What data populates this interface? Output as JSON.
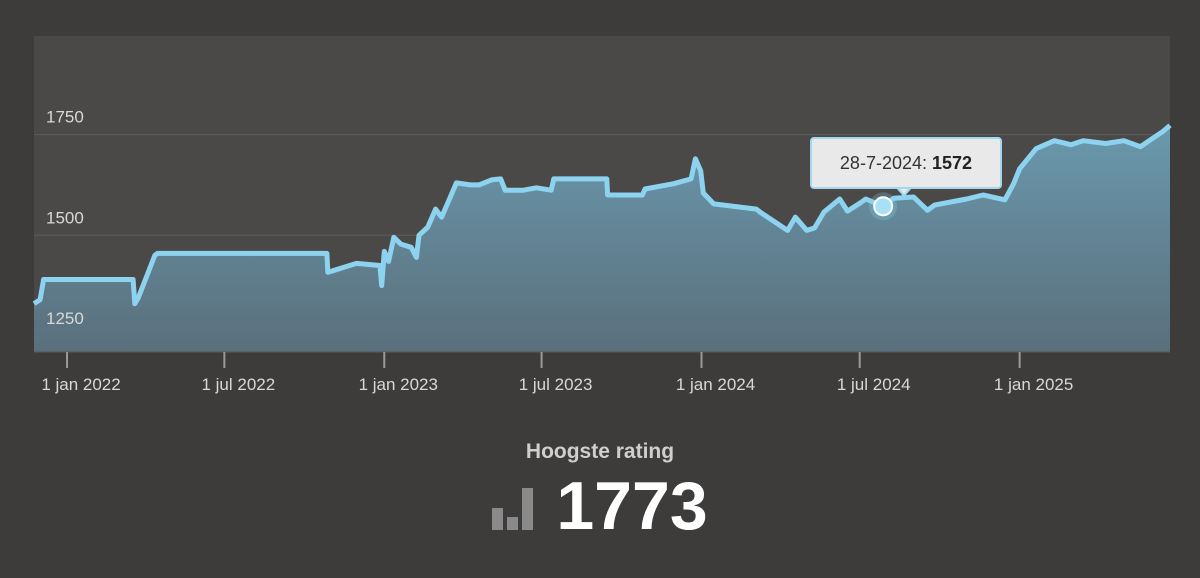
{
  "chart_data": {
    "type": "area",
    "y_ticks": [
      1250,
      1500,
      1750
    ],
    "ylim": [
      1210,
      1995
    ],
    "x_ticks": [
      "1 jan 2022",
      "1 jul 2022",
      "1 jan 2023",
      "1 jul 2023",
      "1 jan 2024",
      "1 jul 2024",
      "1 jan 2025"
    ],
    "x_tick_dates": [
      "2022-01-01",
      "2022-07-01",
      "2023-01-01",
      "2023-07-01",
      "2024-01-01",
      "2024-07-01",
      "2025-01-01"
    ],
    "xlim": [
      "2021-11-24",
      "2025-06-23"
    ],
    "grid": true,
    "line_color": "#8dd3f0",
    "series": [
      {
        "points": [
          [
            "2021-11-24",
            1330
          ],
          [
            "2021-12-01",
            1340
          ],
          [
            "2021-12-05",
            1390
          ],
          [
            "2022-02-15",
            1390
          ],
          [
            "2022-03-18",
            1390
          ],
          [
            "2022-03-20",
            1330
          ],
          [
            "2022-03-24",
            1345
          ],
          [
            "2022-04-03",
            1400
          ],
          [
            "2022-04-12",
            1450
          ],
          [
            "2022-04-15",
            1455
          ],
          [
            "2022-10-27",
            1455
          ],
          [
            "2022-10-28",
            1408
          ],
          [
            "2022-11-30",
            1430
          ],
          [
            "2022-12-27",
            1425
          ],
          [
            "2022-12-29",
            1375
          ],
          [
            "2023-01-01",
            1460
          ],
          [
            "2023-01-06",
            1435
          ],
          [
            "2023-01-12",
            1495
          ],
          [
            "2023-01-20",
            1478
          ],
          [
            "2023-02-01",
            1470
          ],
          [
            "2023-02-07",
            1445
          ],
          [
            "2023-02-10",
            1500
          ],
          [
            "2023-02-20",
            1520
          ],
          [
            "2023-03-01",
            1565
          ],
          [
            "2023-03-08",
            1545
          ],
          [
            "2023-03-15",
            1580
          ],
          [
            "2023-03-25",
            1630
          ],
          [
            "2023-04-10",
            1625
          ],
          [
            "2023-04-20",
            1625
          ],
          [
            "2023-05-05",
            1638
          ],
          [
            "2023-05-15",
            1640
          ],
          [
            "2023-05-20",
            1612
          ],
          [
            "2023-06-10",
            1612
          ],
          [
            "2023-06-25",
            1618
          ],
          [
            "2023-07-12",
            1612
          ],
          [
            "2023-07-15",
            1640
          ],
          [
            "2023-09-14",
            1640
          ],
          [
            "2023-09-15",
            1600
          ],
          [
            "2023-10-25",
            1600
          ],
          [
            "2023-10-28",
            1615
          ],
          [
            "2023-11-30",
            1628
          ],
          [
            "2023-12-20",
            1640
          ],
          [
            "2023-12-25",
            1690
          ],
          [
            "2023-12-31",
            1660
          ],
          [
            "2024-01-03",
            1605
          ],
          [
            "2024-01-15",
            1578
          ],
          [
            "2024-03-04",
            1565
          ],
          [
            "2024-03-10",
            1555
          ],
          [
            "2024-03-22",
            1538
          ],
          [
            "2024-04-09",
            1512
          ],
          [
            "2024-04-18",
            1545
          ],
          [
            "2024-05-01",
            1512
          ],
          [
            "2024-05-10",
            1518
          ],
          [
            "2024-05-21",
            1558
          ],
          [
            "2024-06-08",
            1590
          ],
          [
            "2024-06-17",
            1560
          ],
          [
            "2024-06-30",
            1578
          ],
          [
            "2024-07-08",
            1590
          ],
          [
            "2024-07-28",
            1572
          ],
          [
            "2024-08-09",
            1592
          ],
          [
            "2024-09-01",
            1595
          ],
          [
            "2024-09-17",
            1562
          ],
          [
            "2024-09-25",
            1575
          ],
          [
            "2024-11-01",
            1590
          ],
          [
            "2024-11-20",
            1600
          ],
          [
            "2024-12-15",
            1588
          ],
          [
            "2024-12-25",
            1628
          ],
          [
            "2025-01-01",
            1665
          ],
          [
            "2025-01-20",
            1715
          ],
          [
            "2025-02-10",
            1735
          ],
          [
            "2025-03-01",
            1725
          ],
          [
            "2025-03-15",
            1735
          ],
          [
            "2025-04-10",
            1728
          ],
          [
            "2025-05-01",
            1735
          ],
          [
            "2025-05-20",
            1720
          ],
          [
            "2025-06-01",
            1738
          ],
          [
            "2025-06-15",
            1758
          ],
          [
            "2025-06-23",
            1773
          ]
        ]
      }
    ]
  },
  "tooltip": {
    "date": "2024-07-28",
    "value": 1572,
    "date_label": "28-7-2024:",
    "value_label": "1572"
  },
  "stat": {
    "label": "Hoogste rating",
    "value": "1773",
    "icon": "bar-chart-icon"
  }
}
